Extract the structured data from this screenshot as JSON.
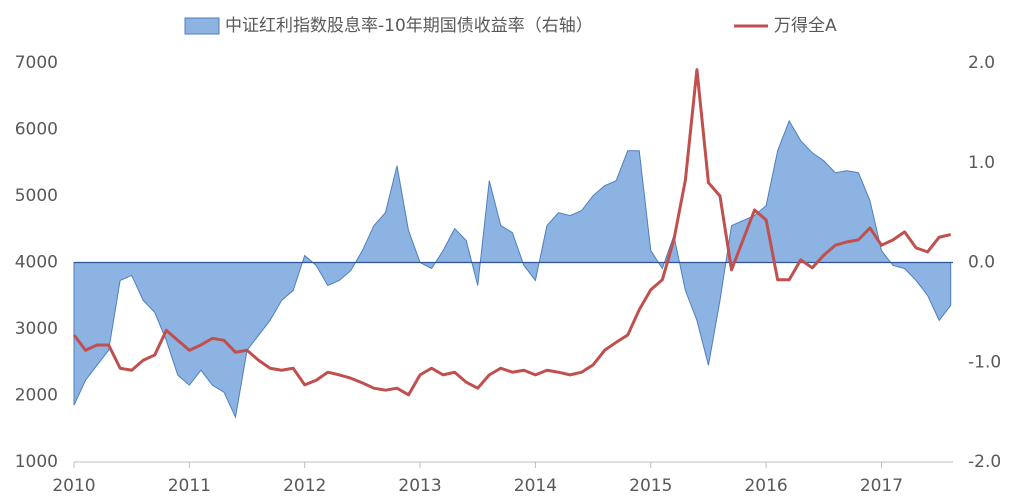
{
  "chart_data": {
    "type": "line-area",
    "xlim": [
      2010,
      2017.62
    ],
    "xticks": [
      2010,
      2011,
      2012,
      2013,
      2014,
      2015,
      2016,
      2017
    ],
    "ylim": [
      1000,
      7000
    ],
    "yticks": [
      1000,
      2000,
      3000,
      4000,
      5000,
      6000,
      7000
    ],
    "y2lim": [
      -2,
      2
    ],
    "y2ticks": [
      {
        "value": 2,
        "label": "2.0"
      },
      {
        "value": 1,
        "label": "1.0"
      },
      {
        "value": 0,
        "label": "0.0"
      },
      {
        "value": -1,
        "label": "-1.0"
      },
      {
        "value": -2,
        "label": "-2.0"
      }
    ],
    "legend": "top",
    "x": [
      2010.0,
      2010.1,
      2010.2,
      2010.3,
      2010.4,
      2010.5,
      2010.6,
      2010.7,
      2010.8,
      2010.9,
      2011.0,
      2011.1,
      2011.2,
      2011.3,
      2011.4,
      2011.5,
      2011.6,
      2011.7,
      2011.8,
      2011.9,
      2012.0,
      2012.1,
      2012.2,
      2012.3,
      2012.4,
      2012.5,
      2012.6,
      2012.7,
      2012.8,
      2012.9,
      2013.0,
      2013.1,
      2013.2,
      2013.3,
      2013.4,
      2013.5,
      2013.6,
      2013.7,
      2013.8,
      2013.9,
      2014.0,
      2014.1,
      2014.2,
      2014.3,
      2014.4,
      2014.5,
      2014.6,
      2014.7,
      2014.8,
      2014.9,
      2015.0,
      2015.1,
      2015.2,
      2015.3,
      2015.4,
      2015.5,
      2015.6,
      2015.7,
      2015.8,
      2015.9,
      2016.0,
      2016.1,
      2016.2,
      2016.3,
      2016.4,
      2016.5,
      2016.6,
      2016.7,
      2016.8,
      2016.9,
      2017.0,
      2017.1,
      2017.2,
      2017.3,
      2017.4,
      2017.5,
      2017.6
    ],
    "series": [
      {
        "name": "中证红利指数股息率-10年期国债收益率（右轴）",
        "kind": "area",
        "axis": "y2",
        "color": "#8db3e2",
        "values": [
          -1.43,
          -1.18,
          -1.03,
          -0.88,
          -0.18,
          -0.13,
          -0.38,
          -0.5,
          -0.78,
          -1.13,
          -1.23,
          -1.08,
          -1.23,
          -1.3,
          -1.55,
          -0.88,
          -0.73,
          -0.58,
          -0.38,
          -0.28,
          0.07,
          -0.03,
          -0.23,
          -0.18,
          -0.08,
          0.12,
          0.37,
          0.5,
          0.97,
          0.32,
          0.0,
          -0.06,
          0.12,
          0.34,
          0.22,
          -0.23,
          0.82,
          0.37,
          0.3,
          -0.03,
          -0.18,
          0.37,
          0.5,
          0.47,
          0.52,
          0.67,
          0.77,
          0.82,
          1.12,
          1.12,
          0.12,
          -0.06,
          0.27,
          -0.28,
          -0.58,
          -1.03,
          -0.38,
          0.37,
          0.42,
          0.47,
          0.57,
          1.12,
          1.42,
          1.22,
          1.1,
          1.02,
          0.9,
          0.92,
          0.9,
          0.62,
          0.12,
          -0.03,
          -0.06,
          -0.18,
          -0.33,
          -0.58,
          -0.43
        ]
      },
      {
        "name": "万得全A",
        "kind": "line",
        "color": "#c0504d",
        "values": [
          2910,
          2680,
          2760,
          2760,
          2410,
          2380,
          2530,
          2610,
          2980,
          2830,
          2680,
          2760,
          2860,
          2830,
          2650,
          2680,
          2530,
          2410,
          2380,
          2410,
          2160,
          2230,
          2350,
          2310,
          2260,
          2190,
          2110,
          2080,
          2110,
          2010,
          2310,
          2410,
          2310,
          2350,
          2200,
          2110,
          2310,
          2410,
          2350,
          2380,
          2310,
          2380,
          2350,
          2310,
          2350,
          2460,
          2680,
          2800,
          2910,
          3290,
          3590,
          3740,
          4340,
          5240,
          6900,
          5200,
          5000,
          3890,
          4340,
          4790,
          4640,
          3740,
          3740,
          4040,
          3920,
          4110,
          4260,
          4310,
          4340,
          4520,
          4260,
          4340,
          4460,
          4220,
          4160,
          4380,
          4420
        ]
      }
    ]
  }
}
